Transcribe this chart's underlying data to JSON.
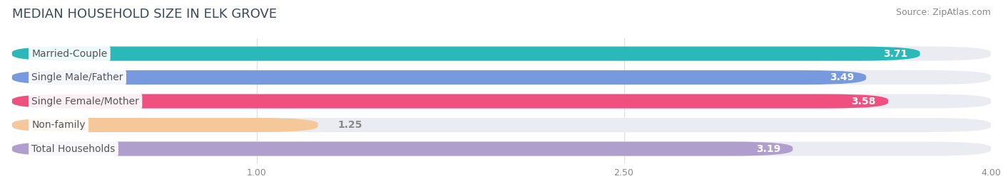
{
  "title": "MEDIAN HOUSEHOLD SIZE IN ELK GROVE",
  "source": "Source: ZipAtlas.com",
  "categories": [
    "Married-Couple",
    "Single Male/Father",
    "Single Female/Mother",
    "Non-family",
    "Total Households"
  ],
  "values": [
    3.71,
    3.49,
    3.58,
    1.25,
    3.19
  ],
  "bar_colors": [
    "#2ab8b8",
    "#7799dd",
    "#f05080",
    "#f5c89a",
    "#b09fcc"
  ],
  "background_color": "#ffffff",
  "bar_bg_color": "#ebebf2",
  "xlim": [
    0,
    4.0
  ],
  "xticks": [
    1.0,
    2.5,
    4.0
  ],
  "title_color": "#3a4a5a",
  "source_color": "#888888",
  "label_text_color": "#555555",
  "value_color_inside": "#ffffff",
  "value_color_outside": "#888888",
  "title_fontsize": 13,
  "source_fontsize": 9,
  "bar_label_fontsize": 10,
  "value_label_fontsize": 10,
  "bar_height": 0.6,
  "rounding_size": 0.25
}
